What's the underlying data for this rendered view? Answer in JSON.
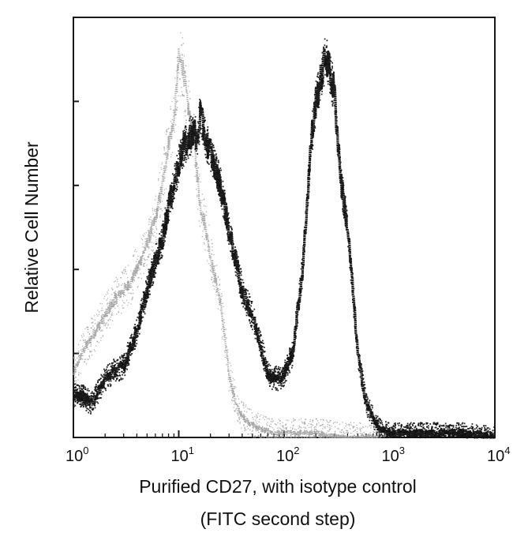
{
  "chart_data": {
    "type": "line",
    "x_scale": "log",
    "xlim": [
      1,
      10000
    ],
    "xlabel_line1": "Purified CD27, with isotype control",
    "xlabel_line2": "(FITC second step)",
    "ylabel": "Relative Cell Number",
    "x_tick_labels": [
      {
        "value": 1,
        "base": "10",
        "exp": "0"
      },
      {
        "value": 10,
        "base": "10",
        "exp": "1"
      },
      {
        "value": 100,
        "base": "10",
        "exp": "2"
      },
      {
        "value": 1000,
        "base": "10",
        "exp": "3"
      },
      {
        "value": 10000,
        "base": "10",
        "exp": "4"
      }
    ],
    "ylim": [
      0,
      100
    ],
    "y_ticks": [
      0,
      20,
      40,
      60,
      80
    ],
    "grid": false,
    "series": [
      {
        "role": "isotype-control",
        "color": "#9a9a9a",
        "style": "light stippled",
        "x": [
          1,
          1.2,
          1.5,
          2,
          2.5,
          3,
          3.5,
          4,
          5,
          6,
          7,
          8,
          9,
          10,
          11,
          12,
          14,
          16,
          18,
          20,
          25,
          30,
          35,
          40,
          50,
          60,
          80,
          100,
          150,
          200,
          400,
          1000
        ],
        "y": [
          15,
          20,
          24,
          29,
          33,
          35,
          37,
          40,
          46,
          52,
          60,
          70,
          75,
          90,
          88,
          80,
          70,
          55,
          50,
          43,
          32,
          15,
          8,
          5,
          3,
          2,
          1,
          1,
          1,
          1,
          0,
          0
        ]
      },
      {
        "role": "purified-CD27",
        "color": "#111111",
        "style": "heavy stippled",
        "x": [
          1,
          1.2,
          1.5,
          2,
          2.5,
          3,
          4,
          5,
          6,
          7,
          8,
          9,
          10,
          11,
          12,
          13,
          14,
          15,
          16,
          18,
          20,
          22,
          25,
          30,
          35,
          40,
          50,
          60,
          70,
          80,
          90,
          100,
          120,
          150,
          180,
          200,
          250,
          300,
          350,
          400,
          450,
          500,
          600,
          800,
          1000,
          1500,
          2000,
          3000,
          5000,
          10000
        ],
        "y": [
          10,
          10,
          8,
          14,
          16,
          17,
          25,
          35,
          42,
          47,
          55,
          60,
          65,
          69,
          70,
          72,
          73,
          70,
          77,
          71,
          68,
          64,
          60,
          49,
          42,
          35,
          29,
          22,
          15,
          14,
          14,
          15,
          20,
          40,
          70,
          80,
          91,
          82,
          60,
          50,
          35,
          20,
          8,
          2,
          1,
          1,
          1,
          1,
          1,
          0
        ]
      }
    ]
  }
}
